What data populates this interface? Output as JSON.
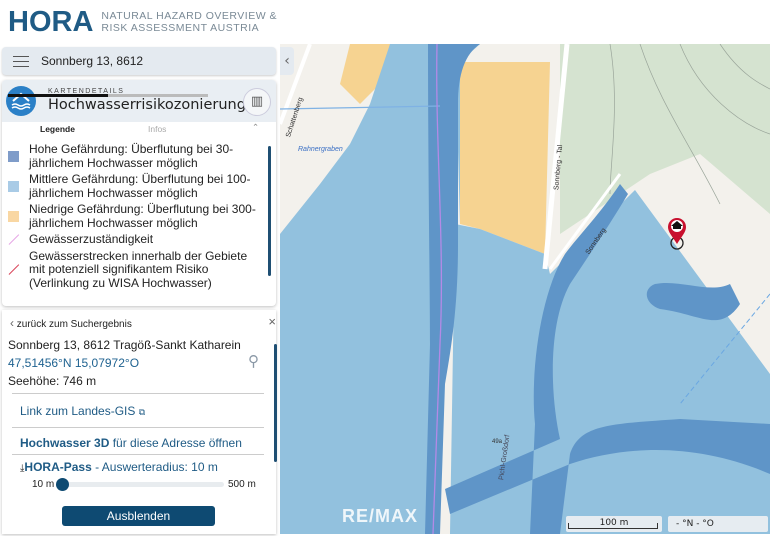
{
  "header": {
    "logo": "HORA",
    "subtitle_line1": "NATURAL HAZARD OVERVIEW &",
    "subtitle_line2": "RISK ASSESSMENT AUSTRIA"
  },
  "search": {
    "value": "Sonnberg 13, 8612"
  },
  "card": {
    "overline": "KARTENDETAILS",
    "title": "Hochwasserrisikozonierung",
    "tabs": [
      {
        "label": "Legende",
        "active": true
      },
      {
        "label": "Infos",
        "active": false
      }
    ],
    "legend": [
      {
        "label": "Hohe Gefährdung: Überflutung bei 30-jährlichem Hochwasser möglich",
        "color": "#7f9cc9",
        "kind": "area"
      },
      {
        "label": "Mittlere Gefährdung: Überflutung bei 100-jährlichem Hochwasser möglich",
        "color": "#a9cbe6",
        "kind": "area"
      },
      {
        "label": "Niedrige Gefährdung: Überflutung bei 300-jährlichem Hochwasser möglich",
        "color": "#f9d7a3",
        "kind": "area"
      },
      {
        "label": "Gewässerzuständigkeit",
        "color": "#e6a6e6",
        "kind": "line"
      },
      {
        "label": "Gewässerstrecken innerhalb der Gebiete mit potenziell signifikantem Risiko (Verlinkung zu WISA Hochwasser)",
        "color": "#d9455a",
        "kind": "line"
      }
    ]
  },
  "info": {
    "back": "zurück zum Suchergebnis",
    "address": "Sonnberg 13, 8612 Tragöß-Sankt Katharein",
    "coords": "47,51456°N 15,07972°O",
    "elevation": "Seehöhe: 746 m",
    "gis_link": "Link zum Landes-GIS",
    "hw3d_bold": "Hochwasser 3D",
    "hw3d_rest": " für diese Adresse öffnen",
    "pass_bold": "HORA-Pass",
    "pass_rest": " - Auswerteradius: 10 m",
    "slider_min": "10 m",
    "slider_max": "500 m",
    "slider_value_fraction": 0,
    "hide_button": "Ausblenden"
  },
  "map": {
    "labels": {
      "schattenberg": "Schattenberg",
      "rahnergraben": "Rahnergraben",
      "sonnberg_tal": "Sonnberg - Tal",
      "sonnberg": "Sonnberg",
      "pichl": "Pichl-Großdorf",
      "house": "49a"
    },
    "watermark": "RE/MAX",
    "scale": "100 m",
    "coord_readout": "- °N - °O",
    "colors": {
      "high": "#5f95c8",
      "medium": "#92c1de",
      "low": "#f6d391",
      "forest": "#d5e3d0"
    }
  }
}
